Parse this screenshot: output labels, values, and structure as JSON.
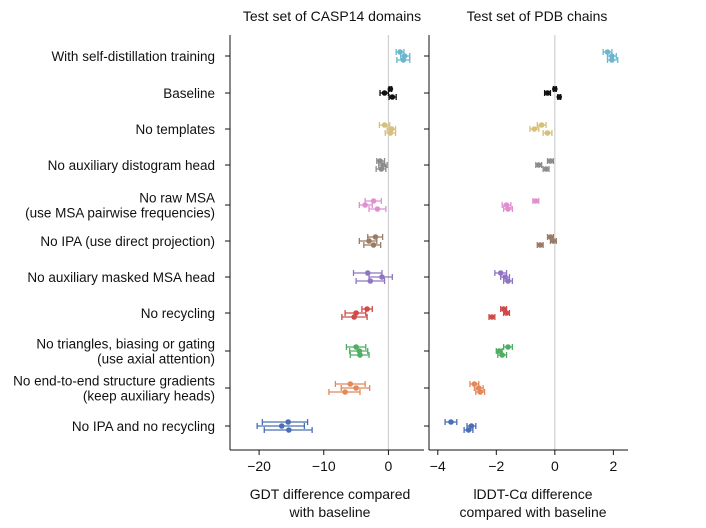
{
  "chart_data": {
    "type": "scatter",
    "ablations": [
      {
        "label_lines": [
          "With self-distillation training"
        ],
        "color": "#6ab6cc"
      },
      {
        "label_lines": [
          "Baseline"
        ],
        "color": "#111111"
      },
      {
        "label_lines": [
          "No templates"
        ],
        "color": "#d6c07a"
      },
      {
        "label_lines": [
          "No auxiliary distogram head"
        ],
        "color": "#8c8c8c"
      },
      {
        "label_lines": [
          "No raw MSA",
          "(use MSA pairwise frequencies)"
        ],
        "color": "#e090d0"
      },
      {
        "label_lines": [
          "No IPA (use direct projection)"
        ],
        "color": "#9a7b66"
      },
      {
        "label_lines": [
          "No auxiliary masked MSA head"
        ],
        "color": "#8f76c2"
      },
      {
        "label_lines": [
          "No recycling"
        ],
        "color": "#cf4a48"
      },
      {
        "label_lines": [
          "No triangles, biasing or gating",
          "(use axial attention)"
        ],
        "color": "#4fae63"
      },
      {
        "label_lines": [
          "No end-to-end structure gradients",
          "(keep auxiliary heads)"
        ],
        "color": "#e3885a"
      },
      {
        "label_lines": [
          "No IPA and no recycling"
        ],
        "color": "#4a6fb5"
      }
    ],
    "panels": [
      {
        "title": "Test set of CASP14 domains",
        "xlabel_lines": [
          "GDT difference compared",
          "with baseline"
        ],
        "xlim": [
          -24.5,
          5.5
        ],
        "xticks": [
          -20,
          -10,
          0
        ],
        "xtick_labels": [
          "−20",
          "−10",
          "0"
        ],
        "points": [
          [
            {
              "x": 1.8,
              "lo": 1.2,
              "hi": 2.4
            },
            {
              "x": 2.5,
              "lo": 1.9,
              "hi": 3.3
            },
            {
              "x": 2.3,
              "lo": 1.3,
              "hi": 3.3
            }
          ],
          [
            {
              "x": 0.3,
              "lo": 0.1,
              "hi": 0.5
            },
            {
              "x": -0.6,
              "lo": -1.3,
              "hi": 0.0
            },
            {
              "x": 0.6,
              "lo": 0.1,
              "hi": 1.2
            }
          ],
          [
            {
              "x": -0.6,
              "lo": -1.4,
              "hi": 0.2
            },
            {
              "x": 0.5,
              "lo": -0.2,
              "hi": 1.1
            },
            {
              "x": 0.3,
              "lo": -0.5,
              "hi": 1.1
            }
          ],
          [
            {
              "x": -1.3,
              "lo": -1.8,
              "hi": -0.6
            },
            {
              "x": -0.8,
              "lo": -1.5,
              "hi": -0.2
            },
            {
              "x": -1.1,
              "lo": -1.9,
              "hi": -0.4
            }
          ],
          [
            {
              "x": -2.3,
              "lo": -3.6,
              "hi": -1.1
            },
            {
              "x": -3.6,
              "lo": -4.5,
              "hi": -2.5
            },
            {
              "x": -1.7,
              "lo": -3.0,
              "hi": -0.4
            }
          ],
          [
            {
              "x": -2.0,
              "lo": -3.2,
              "hi": -0.9
            },
            {
              "x": -3.0,
              "lo": -4.5,
              "hi": -1.8
            },
            {
              "x": -2.3,
              "lo": -3.8,
              "hi": -1.2
            }
          ],
          [
            {
              "x": -3.2,
              "lo": -5.4,
              "hi": -1.0
            },
            {
              "x": -1.0,
              "lo": -3.0,
              "hi": 0.6
            },
            {
              "x": -2.8,
              "lo": -5.0,
              "hi": -0.6
            }
          ],
          [
            {
              "x": -3.3,
              "lo": -4.1,
              "hi": -2.5
            },
            {
              "x": -5.0,
              "lo": -6.7,
              "hi": -3.5
            },
            {
              "x": -5.3,
              "lo": -7.2,
              "hi": -3.3
            }
          ],
          [
            {
              "x": -5.0,
              "lo": -6.5,
              "hi": -3.5
            },
            {
              "x": -4.5,
              "lo": -6.0,
              "hi": -3.2
            },
            {
              "x": -4.4,
              "lo": -5.9,
              "hi": -3.0
            }
          ],
          [
            {
              "x": -5.9,
              "lo": -8.2,
              "hi": -3.6
            },
            {
              "x": -5.0,
              "lo": -7.3,
              "hi": -2.9
            },
            {
              "x": -6.7,
              "lo": -9.2,
              "hi": -4.4
            }
          ],
          [
            {
              "x": -15.5,
              "lo": -19.5,
              "hi": -12.5
            },
            {
              "x": -16.5,
              "lo": -20.3,
              "hi": -13.0
            },
            {
              "x": -15.4,
              "lo": -19.2,
              "hi": -11.8
            }
          ]
        ]
      },
      {
        "title": "Test set of PDB chains",
        "xlabel_lines": [
          "lDDT-Cα difference",
          "compared with baseline"
        ],
        "xlim": [
          -4.3,
          2.5
        ],
        "xticks": [
          -4,
          -2,
          0,
          2
        ],
        "xtick_labels": [
          "−4",
          "−2",
          "0",
          "2"
        ],
        "points": [
          [
            {
              "x": 1.8,
              "lo": 1.65,
              "hi": 1.95
            },
            {
              "x": 1.95,
              "lo": 1.8,
              "hi": 2.1
            },
            {
              "x": 1.95,
              "lo": 1.8,
              "hi": 2.15
            }
          ],
          [
            {
              "x": 0.0,
              "lo": -0.05,
              "hi": 0.05
            },
            {
              "x": -0.25,
              "lo": -0.35,
              "hi": -0.15
            },
            {
              "x": 0.15,
              "lo": 0.1,
              "hi": 0.2
            }
          ],
          [
            {
              "x": -0.45,
              "lo": -0.6,
              "hi": -0.3
            },
            {
              "x": -0.7,
              "lo": -0.85,
              "hi": -0.55
            },
            {
              "x": -0.25,
              "lo": -0.4,
              "hi": -0.1
            }
          ],
          [
            {
              "x": -0.15,
              "lo": -0.25,
              "hi": -0.05
            },
            {
              "x": -0.55,
              "lo": -0.65,
              "hi": -0.45
            },
            {
              "x": -0.3,
              "lo": -0.4,
              "hi": -0.2
            }
          ],
          [
            {
              "x": -0.65,
              "lo": -0.75,
              "hi": -0.55
            },
            {
              "x": -1.65,
              "lo": -1.8,
              "hi": -1.5
            },
            {
              "x": -1.6,
              "lo": -1.75,
              "hi": -1.45
            }
          ],
          [
            {
              "x": -0.15,
              "lo": -0.25,
              "hi": -0.05
            },
            {
              "x": -0.05,
              "lo": -0.15,
              "hi": 0.05
            },
            {
              "x": -0.5,
              "lo": -0.6,
              "hi": -0.4
            }
          ],
          [
            {
              "x": -1.85,
              "lo": -2.05,
              "hi": -1.65
            },
            {
              "x": -1.7,
              "lo": -1.85,
              "hi": -1.55
            },
            {
              "x": -1.6,
              "lo": -1.75,
              "hi": -1.45
            }
          ],
          [
            {
              "x": -1.75,
              "lo": -1.85,
              "hi": -1.65
            },
            {
              "x": -1.65,
              "lo": -1.75,
              "hi": -1.55
            },
            {
              "x": -2.15,
              "lo": -2.25,
              "hi": -2.05
            }
          ],
          [
            {
              "x": -1.6,
              "lo": -1.75,
              "hi": -1.45
            },
            {
              "x": -1.9,
              "lo": -2.0,
              "hi": -1.8
            },
            {
              "x": -1.8,
              "lo": -1.95,
              "hi": -1.65
            }
          ],
          [
            {
              "x": -2.75,
              "lo": -2.9,
              "hi": -2.6
            },
            {
              "x": -2.6,
              "lo": -2.75,
              "hi": -2.45
            },
            {
              "x": -2.55,
              "lo": -2.7,
              "hi": -2.4
            }
          ],
          [
            {
              "x": -3.55,
              "lo": -3.75,
              "hi": -3.35
            },
            {
              "x": -2.85,
              "lo": -3.0,
              "hi": -2.7
            },
            {
              "x": -2.95,
              "lo": -3.1,
              "hi": -2.8
            }
          ]
        ]
      }
    ]
  }
}
